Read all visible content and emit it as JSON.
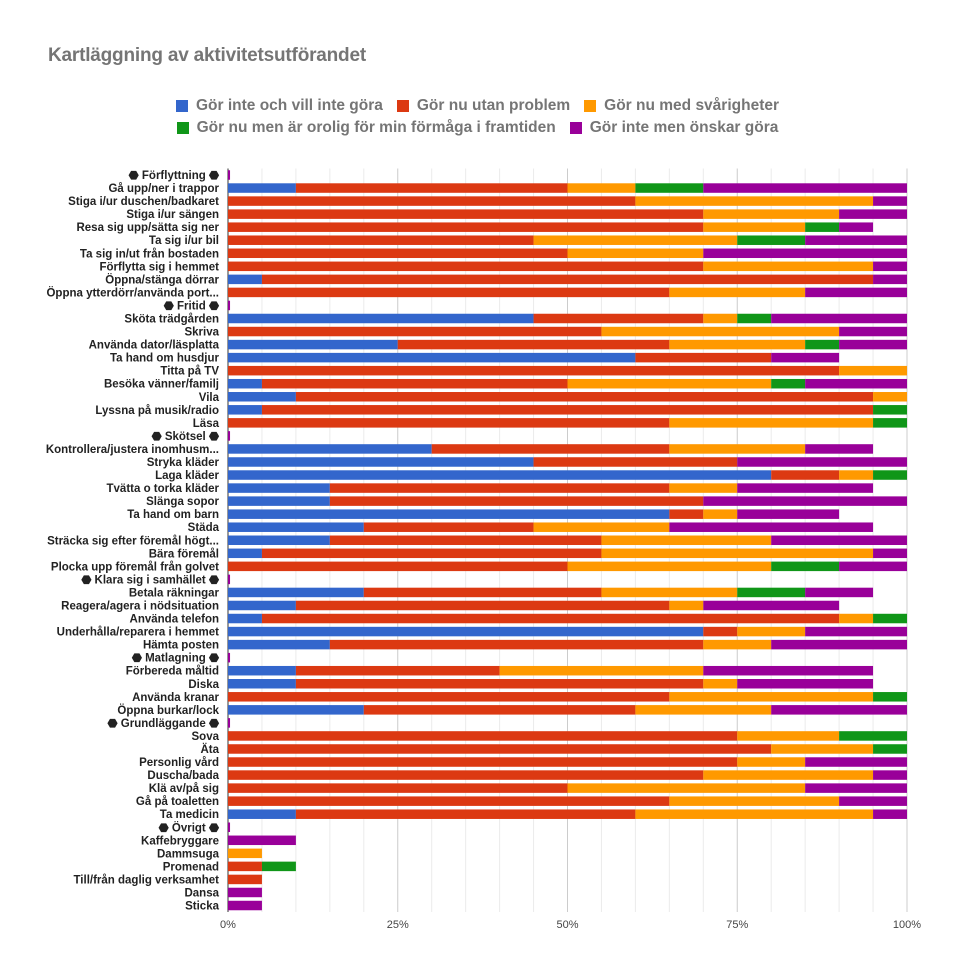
{
  "chart_data": {
    "type": "bar",
    "orientation": "horizontal",
    "stacked": "percent",
    "title": "Kartläggning av aktivitetsutförandet",
    "xlabel": "",
    "ylabel": "",
    "xlim": [
      0,
      100
    ],
    "x_ticks": [
      "0%",
      "25%",
      "50%",
      "75%",
      "100%"
    ],
    "grid": true,
    "legend_position": "top",
    "series": [
      {
        "name": "Gör inte och vill inte göra",
        "color": "#3366cc"
      },
      {
        "name": "Gör nu utan problem",
        "color": "#dc3912"
      },
      {
        "name": "Gör nu med svårigheter",
        "color": "#ff9900"
      },
      {
        "name": "Gör nu men är orolig för min förmåga i framtiden",
        "color": "#109618"
      },
      {
        "name": "Gör inte men önskar göra",
        "color": "#990099"
      }
    ],
    "categories": [
      {
        "label": "⬣ Förflyttning ⬣",
        "values": [
          0,
          0,
          0,
          0,
          0.3
        ]
      },
      {
        "label": "Gå upp/ner i trappor",
        "values": [
          10,
          40,
          10,
          10,
          30
        ]
      },
      {
        "label": "Stiga i/ur duschen/badkaret",
        "values": [
          0,
          60,
          35,
          0,
          5
        ]
      },
      {
        "label": "Stiga i/ur sängen",
        "values": [
          0,
          70,
          20,
          0,
          10
        ]
      },
      {
        "label": "Resa sig upp/sätta sig ner",
        "values": [
          0,
          70,
          15,
          5,
          5
        ]
      },
      {
        "label": "Ta sig i/ur bil",
        "values": [
          0,
          45,
          30,
          10,
          15
        ]
      },
      {
        "label": "Ta sig in/ut från bostaden",
        "values": [
          0,
          50,
          20,
          0,
          30
        ]
      },
      {
        "label": "Förflytta sig i hemmet",
        "values": [
          0,
          70,
          25,
          0,
          5
        ]
      },
      {
        "label": "Öppna/stänga dörrar",
        "values": [
          5,
          90,
          0,
          0,
          5
        ]
      },
      {
        "label": "Öppna ytterdörr/använda port...",
        "values": [
          0,
          65,
          20,
          0,
          15
        ]
      },
      {
        "label": "⬣ Fritid ⬣",
        "values": [
          0,
          0,
          0,
          0,
          0.3
        ]
      },
      {
        "label": "Sköta trädgården",
        "values": [
          45,
          25,
          5,
          5,
          20
        ]
      },
      {
        "label": "Skriva",
        "values": [
          0,
          55,
          35,
          0,
          10
        ]
      },
      {
        "label": "Använda dator/läsplatta",
        "values": [
          25,
          40,
          20,
          5,
          10
        ]
      },
      {
        "label": "Ta hand om husdjur",
        "values": [
          60,
          20,
          0,
          0,
          10
        ]
      },
      {
        "label": "Titta på TV",
        "values": [
          0,
          90,
          10,
          0,
          0
        ]
      },
      {
        "label": "Besöka vänner/familj",
        "values": [
          5,
          45,
          30,
          5,
          15
        ]
      },
      {
        "label": "Vila",
        "values": [
          10,
          85,
          5,
          0,
          0
        ]
      },
      {
        "label": "Lyssna på musik/radio",
        "values": [
          5,
          90,
          0,
          5,
          0
        ]
      },
      {
        "label": "Läsa",
        "values": [
          0,
          65,
          30,
          5,
          0
        ]
      },
      {
        "label": "⬣ Skötsel ⬣",
        "values": [
          0,
          0,
          0,
          0,
          0.3
        ]
      },
      {
        "label": "Kontrollera/justera inomhusm...",
        "values": [
          30,
          35,
          20,
          0,
          10
        ]
      },
      {
        "label": "Stryka kläder",
        "values": [
          45,
          30,
          0,
          0,
          25
        ]
      },
      {
        "label": "Laga kläder",
        "values": [
          80,
          10,
          5,
          5,
          0
        ]
      },
      {
        "label": "Tvätta o torka kläder",
        "values": [
          15,
          50,
          10,
          0,
          20
        ]
      },
      {
        "label": "Slänga sopor",
        "values": [
          15,
          55,
          0,
          0,
          30
        ]
      },
      {
        "label": "Ta hand om barn",
        "values": [
          65,
          5,
          5,
          0,
          15
        ]
      },
      {
        "label": "Städa",
        "values": [
          20,
          25,
          20,
          0,
          30
        ]
      },
      {
        "label": "Sträcka sig efter föremål högt...",
        "values": [
          15,
          40,
          25,
          0,
          20
        ]
      },
      {
        "label": "Bära föremål",
        "values": [
          5,
          50,
          40,
          0,
          5
        ]
      },
      {
        "label": "Plocka upp föremål från golvet",
        "values": [
          0,
          50,
          30,
          10,
          10
        ]
      },
      {
        "label": "⬣ Klara sig i samhället ⬣",
        "values": [
          0,
          0,
          0,
          0,
          0.3
        ]
      },
      {
        "label": "Betala räkningar",
        "values": [
          20,
          35,
          20,
          10,
          10
        ]
      },
      {
        "label": "Reagera/agera i nödsituation",
        "values": [
          10,
          55,
          5,
          0,
          20
        ]
      },
      {
        "label": "Använda telefon",
        "values": [
          5,
          85,
          5,
          5,
          0
        ]
      },
      {
        "label": "Underhålla/reparera i hemmet",
        "values": [
          70,
          5,
          10,
          0,
          15
        ]
      },
      {
        "label": "Hämta posten",
        "values": [
          15,
          55,
          10,
          0,
          20
        ]
      },
      {
        "label": "⬣ Matlagning ⬣",
        "values": [
          0,
          0,
          0,
          0,
          0.3
        ]
      },
      {
        "label": "Förbereda måltid",
        "values": [
          10,
          30,
          30,
          0,
          25
        ]
      },
      {
        "label": "Diska",
        "values": [
          10,
          60,
          5,
          0,
          20
        ]
      },
      {
        "label": "Använda kranar",
        "values": [
          0,
          65,
          30,
          5,
          0
        ]
      },
      {
        "label": "Öppna burkar/lock",
        "values": [
          20,
          40,
          20,
          0,
          20
        ]
      },
      {
        "label": "⬣ Grundläggande ⬣",
        "values": [
          0,
          0,
          0,
          0,
          0.3
        ]
      },
      {
        "label": "Sova",
        "values": [
          0,
          75,
          15,
          10,
          0
        ]
      },
      {
        "label": "Äta",
        "values": [
          0,
          80,
          15,
          5,
          0
        ]
      },
      {
        "label": "Personlig vård",
        "values": [
          0,
          75,
          10,
          0,
          15
        ]
      },
      {
        "label": "Duscha/bada",
        "values": [
          0,
          70,
          25,
          0,
          5
        ]
      },
      {
        "label": "Klä av/på sig",
        "values": [
          0,
          50,
          35,
          0,
          15
        ]
      },
      {
        "label": "Gå på toaletten",
        "values": [
          0,
          65,
          25,
          0,
          10
        ]
      },
      {
        "label": "Ta medicin",
        "values": [
          10,
          50,
          35,
          0,
          5
        ]
      },
      {
        "label": "⬣ Övrigt ⬣",
        "values": [
          0,
          0,
          0,
          0,
          0.3
        ]
      },
      {
        "label": "Kaffebryggare",
        "values": [
          0,
          0,
          0,
          0,
          10
        ]
      },
      {
        "label": "Dammsuga",
        "values": [
          0,
          0,
          5,
          0,
          0
        ]
      },
      {
        "label": "Promenad",
        "values": [
          0,
          5,
          0,
          5,
          0
        ]
      },
      {
        "label": "Till/från daglig verksamhet",
        "values": [
          0,
          5,
          0,
          0,
          0
        ]
      },
      {
        "label": "Dansa",
        "values": [
          0,
          0,
          0,
          0,
          5
        ]
      },
      {
        "label": "Sticka",
        "values": [
          0,
          0,
          0,
          0,
          5
        ]
      }
    ]
  }
}
